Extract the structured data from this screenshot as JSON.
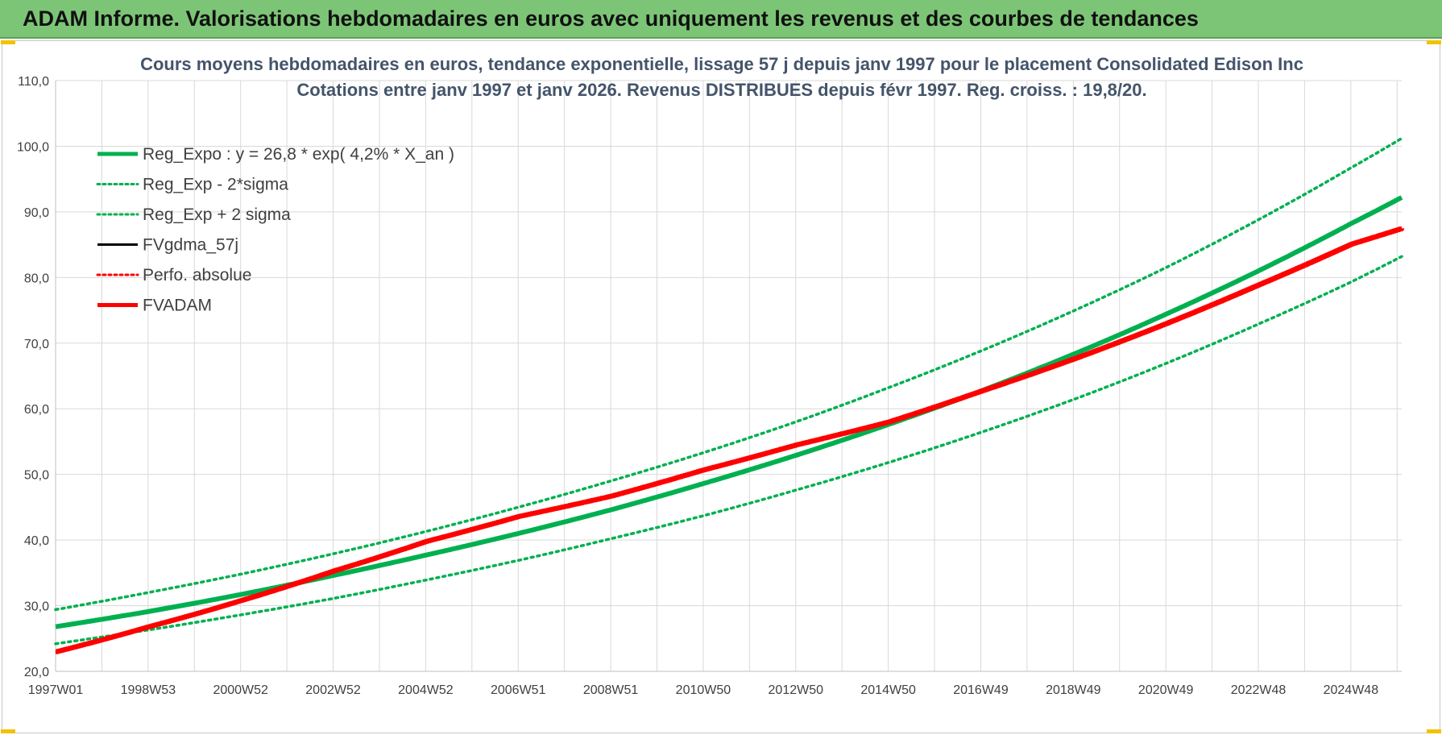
{
  "header": {
    "title": "ADAM Informe. Valorisations hebdomadaires en euros avec uniquement les revenus et des courbes de tendances"
  },
  "colors": {
    "header_bg": "#7cc576",
    "reg_green": "#00b050",
    "adam_red": "#ff0000",
    "gdma_black": "#000000",
    "title_blue_gray": "#44546a",
    "grid": "#d9d9d9"
  },
  "chart_data": {
    "type": "line",
    "title_line1": "Cours moyens hebdomadaires en euros, tendance exponentielle, lissage 57 j depuis janv 1997 pour le placement Consolidated Edison Inc",
    "title_line2": "Cotations entre janv 1997 et janv 2026. Revenus DISTRIBUES depuis févr 1997. Reg. croiss. : 19,8/20.",
    "xlabel": "",
    "ylabel": "",
    "ylim": [
      20,
      110
    ],
    "y_ticks": [
      "20,0",
      "30,0",
      "40,0",
      "50,0",
      "60,0",
      "70,0",
      "80,0",
      "90,0",
      "100,0",
      "110,0"
    ],
    "x_tick_labels": [
      "1997W01",
      "1998W53",
      "2000W52",
      "2002W52",
      "2004W52",
      "2006W51",
      "2008W51",
      "2010W50",
      "2012W50",
      "2014W50",
      "2016W49",
      "2018W49",
      "2020W49",
      "2022W48",
      "2024W48"
    ],
    "x_range_years": [
      1997.0,
      2026.1
    ],
    "grid": true,
    "legend_position": "top-left",
    "series": [
      {
        "name": "Reg_Expo : y = 26,8 * exp( 4,2% *  X_an )",
        "style": "solid-thick",
        "color": "#00b050",
        "x": [
          1997,
          1999,
          2001,
          2003,
          2005,
          2007,
          2009,
          2011,
          2013,
          2015,
          2017,
          2019,
          2021,
          2023,
          2025,
          2026.1
        ],
        "values": [
          26.8,
          29.1,
          31.7,
          34.6,
          37.7,
          41.0,
          44.6,
          48.6,
          52.9,
          57.6,
          62.7,
          68.3,
          74.4,
          81.0,
          88.2,
          92.2
        ]
      },
      {
        "name": "Reg_Exp - 2*sigma",
        "style": "dotted",
        "color": "#00b050",
        "x": [
          1997,
          1999,
          2001,
          2003,
          2005,
          2007,
          2009,
          2011,
          2013,
          2015,
          2017,
          2019,
          2021,
          2023,
          2025,
          2026.1
        ],
        "values": [
          24.2,
          26.3,
          28.6,
          31.1,
          33.9,
          36.9,
          40.2,
          43.7,
          47.6,
          51.8,
          56.4,
          61.4,
          66.9,
          72.9,
          79.3,
          83.2
        ]
      },
      {
        "name": "Reg_Exp + 2 sigma",
        "style": "dotted",
        "color": "#00b050",
        "x": [
          1997,
          1999,
          2001,
          2003,
          2005,
          2007,
          2009,
          2011,
          2013,
          2015,
          2017,
          2019,
          2021,
          2023,
          2025,
          2026.1
        ],
        "values": [
          29.4,
          32.0,
          34.8,
          37.9,
          41.3,
          45.0,
          49.0,
          53.3,
          58.0,
          63.2,
          68.8,
          74.9,
          81.5,
          88.8,
          96.7,
          101.2
        ]
      },
      {
        "name": "FVgdma_57j",
        "style": "solid",
        "color": "#000000",
        "x": [],
        "values": []
      },
      {
        "name": "Perfo. absolue",
        "style": "dotted",
        "color": "#ff0000",
        "x": [],
        "values": []
      },
      {
        "name": "FVADAM",
        "style": "solid-thick",
        "color": "#ff0000",
        "x": [
          1997,
          1999,
          2001,
          2003,
          2005,
          2007,
          2009,
          2011,
          2013,
          2015,
          2017,
          2019,
          2021,
          2023,
          2025,
          2026.1
        ],
        "values": [
          23.0,
          26.8,
          30.8,
          35.3,
          39.8,
          43.6,
          46.7,
          50.7,
          54.5,
          58.0,
          62.7,
          67.6,
          73.0,
          78.9,
          85.1,
          87.5
        ]
      }
    ]
  }
}
